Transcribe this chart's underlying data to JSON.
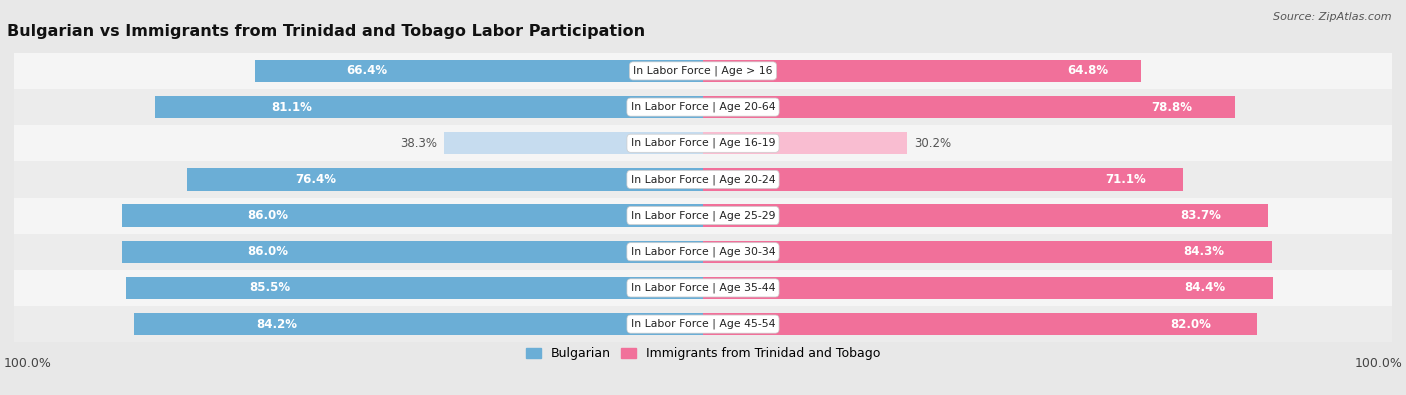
{
  "title": "Bulgarian vs Immigrants from Trinidad and Tobago Labor Participation",
  "source": "Source: ZipAtlas.com",
  "categories": [
    "In Labor Force | Age > 16",
    "In Labor Force | Age 20-64",
    "In Labor Force | Age 16-19",
    "In Labor Force | Age 20-24",
    "In Labor Force | Age 25-29",
    "In Labor Force | Age 30-34",
    "In Labor Force | Age 35-44",
    "In Labor Force | Age 45-54"
  ],
  "bulgarian_values": [
    66.4,
    81.1,
    38.3,
    76.4,
    86.0,
    86.0,
    85.5,
    84.2
  ],
  "immigrant_values": [
    64.8,
    78.8,
    30.2,
    71.1,
    83.7,
    84.3,
    84.4,
    82.0
  ],
  "bulgarian_color": "#6BAED6",
  "bulgarian_color_light": "#C6DCEF",
  "immigrant_color": "#F1709A",
  "immigrant_color_light": "#F9BDD1",
  "row_bg_colors": [
    "#f7f7f7",
    "#efefef",
    "#f7f7f7",
    "#efefef",
    "#f7f7f7",
    "#efefef",
    "#f7f7f7",
    "#efefef"
  ],
  "background_color": "#e8e8e8",
  "legend_bulgarian": "Bulgarian",
  "legend_immigrant": "Immigrants from Trinidad and Tobago",
  "max_value": 100.0,
  "title_fontsize": 11.5,
  "label_fontsize": 8.5,
  "tick_fontsize": 9,
  "cat_fontsize": 7.8
}
